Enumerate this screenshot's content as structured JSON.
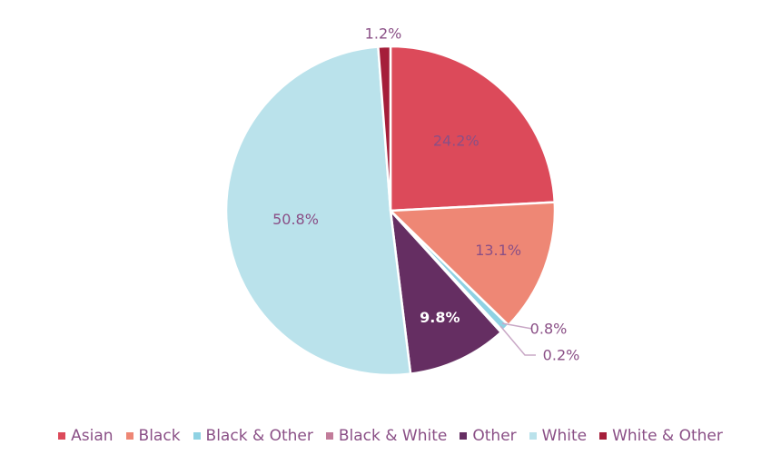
{
  "chart_data": {
    "type": "pie",
    "title": "",
    "slices": [
      {
        "label": "Asian",
        "value": 24.2,
        "display": "24.2%",
        "color": "#dc4a5a"
      },
      {
        "label": "Black",
        "value": 13.1,
        "display": "13.1%",
        "color": "#ee8775"
      },
      {
        "label": "Black & Other",
        "value": 0.8,
        "display": "0.8%",
        "color": "#8fd2e3"
      },
      {
        "label": "Black & White",
        "value": 0.2,
        "display": "0.2%",
        "color": "#c27c9a"
      },
      {
        "label": "Other",
        "value": 9.8,
        "display": "9.8%",
        "color": "#652e62"
      },
      {
        "label": "White",
        "value": 50.8,
        "display": "50.8%",
        "color": "#bae2eb"
      },
      {
        "label": "White & Other",
        "value": 1.2,
        "display": "1.2%",
        "color": "#a51e3a"
      }
    ],
    "legend_position": "bottom",
    "label_color": "#8a4f86"
  }
}
